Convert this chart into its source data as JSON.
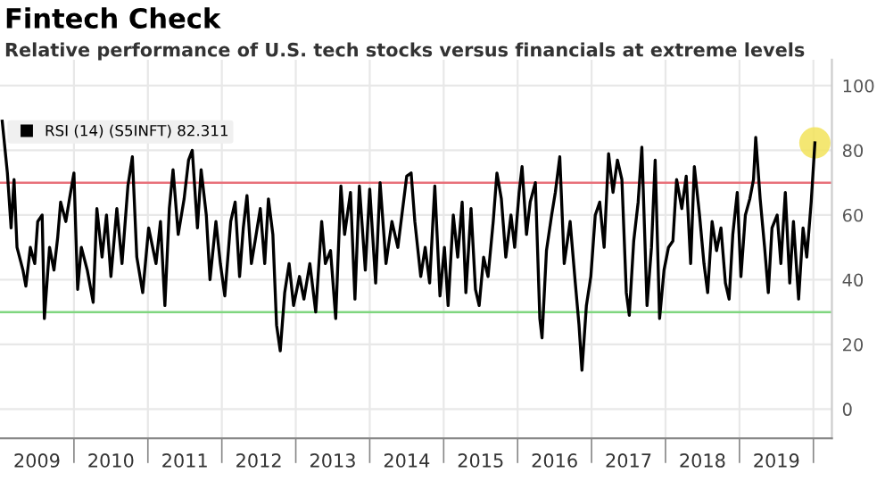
{
  "chart_data": {
    "type": "line",
    "title": "Fintech Check",
    "subtitle": "Relative performance of U.S. tech stocks versus financials at extreme levels",
    "series": [
      {
        "name": "RSI (14) (S5INFT) 82.311",
        "color": "#000000",
        "x": [
          2009.03,
          2009.1,
          2009.15,
          2009.19,
          2009.23,
          2009.31,
          2009.35,
          2009.41,
          2009.47,
          2009.51,
          2009.57,
          2009.6,
          2009.67,
          2009.73,
          2009.78,
          2009.82,
          2009.89,
          2009.94,
          2010.0,
          2010.05,
          2010.1,
          2010.18,
          2010.26,
          2010.31,
          2010.38,
          2010.44,
          2010.5,
          2010.58,
          2010.65,
          2010.73,
          2010.79,
          2010.85,
          2010.93,
          2011.01,
          2011.11,
          2011.17,
          2011.23,
          2011.29,
          2011.34,
          2011.41,
          2011.49,
          2011.55,
          2011.6,
          2011.67,
          2011.72,
          2011.79,
          2011.84,
          2011.92,
          2011.98,
          2012.04,
          2012.12,
          2012.18,
          2012.24,
          2012.29,
          2012.34,
          2012.4,
          2012.45,
          2012.52,
          2012.58,
          2012.63,
          2012.69,
          2012.74,
          2012.79,
          2012.85,
          2012.91,
          2012.97,
          2013.05,
          2013.11,
          2013.19,
          2013.27,
          2013.35,
          2013.4,
          2013.47,
          2013.54,
          2013.61,
          2013.66,
          2013.74,
          2013.8,
          2013.86,
          2013.94,
          2014.0,
          2014.08,
          2014.14,
          2014.22,
          2014.3,
          2014.38,
          2014.5,
          2014.56,
          2014.61,
          2014.69,
          2014.75,
          2014.81,
          2014.88,
          2014.95,
          2015.01,
          2015.06,
          2015.13,
          2015.19,
          2015.25,
          2015.3,
          2015.37,
          2015.43,
          2015.48,
          2015.54,
          2015.6,
          2015.67,
          2015.72,
          2015.78,
          2015.84,
          2015.91,
          2015.96,
          2016.02,
          2016.06,
          2016.12,
          2016.17,
          2016.24,
          2016.3,
          2016.33,
          2016.39,
          2016.46,
          2016.51,
          2016.57,
          2016.63,
          2016.71,
          2016.78,
          2016.83,
          2016.87,
          2016.93,
          2016.99,
          2017.05,
          2017.11,
          2017.17,
          2017.23,
          2017.29,
          2017.35,
          2017.41,
          2017.47,
          2017.51,
          2017.57,
          2017.63,
          2017.68,
          2017.75,
          2017.81,
          2017.86,
          2017.92,
          2017.98,
          2018.04,
          2018.1,
          2018.15,
          2018.22,
          2018.28,
          2018.34,
          2018.39,
          2018.46,
          2018.52,
          2018.57,
          2018.63,
          2018.69,
          2018.75,
          2018.81,
          2018.86,
          2018.91,
          2018.97,
          2019.02,
          2019.08,
          2019.14,
          2019.19,
          2019.22,
          2019.28,
          2019.34,
          2019.39,
          2019.44,
          2019.51,
          2019.56,
          2019.62,
          2019.68,
          2019.73,
          2019.8,
          2019.86,
          2019.91,
          2019.97,
          2020.02
        ],
        "values": [
          89,
          73,
          56,
          71,
          50,
          43,
          38,
          50,
          45,
          58,
          60,
          28,
          50,
          43,
          53,
          64,
          58,
          65,
          73,
          37,
          50,
          43,
          33,
          62,
          47,
          60,
          41,
          62,
          45,
          69,
          78,
          47,
          36,
          56,
          45,
          58,
          32,
          62,
          74,
          54,
          65,
          77,
          80,
          56,
          74,
          60,
          40,
          58,
          45,
          35,
          58,
          64,
          41,
          56,
          66,
          45,
          52,
          62,
          45,
          65,
          54,
          26,
          18,
          36,
          45,
          32,
          41,
          34,
          45,
          30,
          58,
          45,
          49,
          28,
          69,
          54,
          67,
          34,
          69,
          43,
          68,
          39,
          70,
          45,
          58,
          50,
          72,
          73,
          58,
          41,
          50,
          39,
          69,
          35,
          50,
          32,
          60,
          47,
          64,
          36,
          62,
          37,
          32,
          47,
          41,
          58,
          73,
          65,
          47,
          60,
          50,
          67,
          75,
          54,
          64,
          70,
          28,
          22,
          49,
          60,
          67,
          78,
          45,
          58,
          39,
          26,
          12,
          32,
          41,
          60,
          64,
          50,
          79,
          67,
          77,
          71,
          36,
          29,
          52,
          64,
          81,
          32,
          50,
          77,
          28,
          43,
          50,
          52,
          71,
          62,
          72,
          45,
          75,
          60,
          45,
          36,
          58,
          49,
          56,
          39,
          34,
          54,
          67,
          41,
          60,
          65,
          71,
          84,
          65,
          50,
          36,
          56,
          60,
          45,
          67,
          39,
          58,
          34,
          56,
          47,
          64,
          82.3
        ]
      },
      {
        "type": "scatter",
        "color": "#f2e35a",
        "x": [
          2020.02
        ],
        "values": [
          82.3
        ]
      }
    ],
    "xlim": [
      2009.0,
      2020.25
    ],
    "xticks": [
      {
        "value": 2009.5,
        "label": "2009"
      },
      {
        "value": 2010.5,
        "label": "2010"
      },
      {
        "value": 2011.5,
        "label": "2011"
      },
      {
        "value": 2012.5,
        "label": "2012"
      },
      {
        "value": 2013.5,
        "label": "2013"
      },
      {
        "value": 2014.5,
        "label": "2014"
      },
      {
        "value": 2015.5,
        "label": "2015"
      },
      {
        "value": 2016.5,
        "label": "2016"
      },
      {
        "value": 2017.5,
        "label": "2017"
      },
      {
        "value": 2018.5,
        "label": "2018"
      },
      {
        "value": 2019.5,
        "label": "2019"
      },
      {
        "value": 2010,
        "label": null
      },
      {
        "value": 2011,
        "label": null
      },
      {
        "value": 2012,
        "label": null
      },
      {
        "value": 2013,
        "label": null
      },
      {
        "value": 2014,
        "label": null
      },
      {
        "value": 2015,
        "label": null
      },
      {
        "value": 2016,
        "label": null
      },
      {
        "value": 2017,
        "label": null
      },
      {
        "value": 2018,
        "label": null
      },
      {
        "value": 2019,
        "label": null
      },
      {
        "value": 2020,
        "label": null
      }
    ],
    "ylim": [
      -9,
      108
    ],
    "yticks": [
      0,
      20,
      40,
      60,
      80,
      100
    ],
    "ref_lines": [
      {
        "axis": "y",
        "value": 70,
        "color": "#e8707a"
      },
      {
        "axis": "y",
        "value": 30,
        "color": "#7fd67f"
      }
    ],
    "grid": true,
    "legend": "top left"
  }
}
